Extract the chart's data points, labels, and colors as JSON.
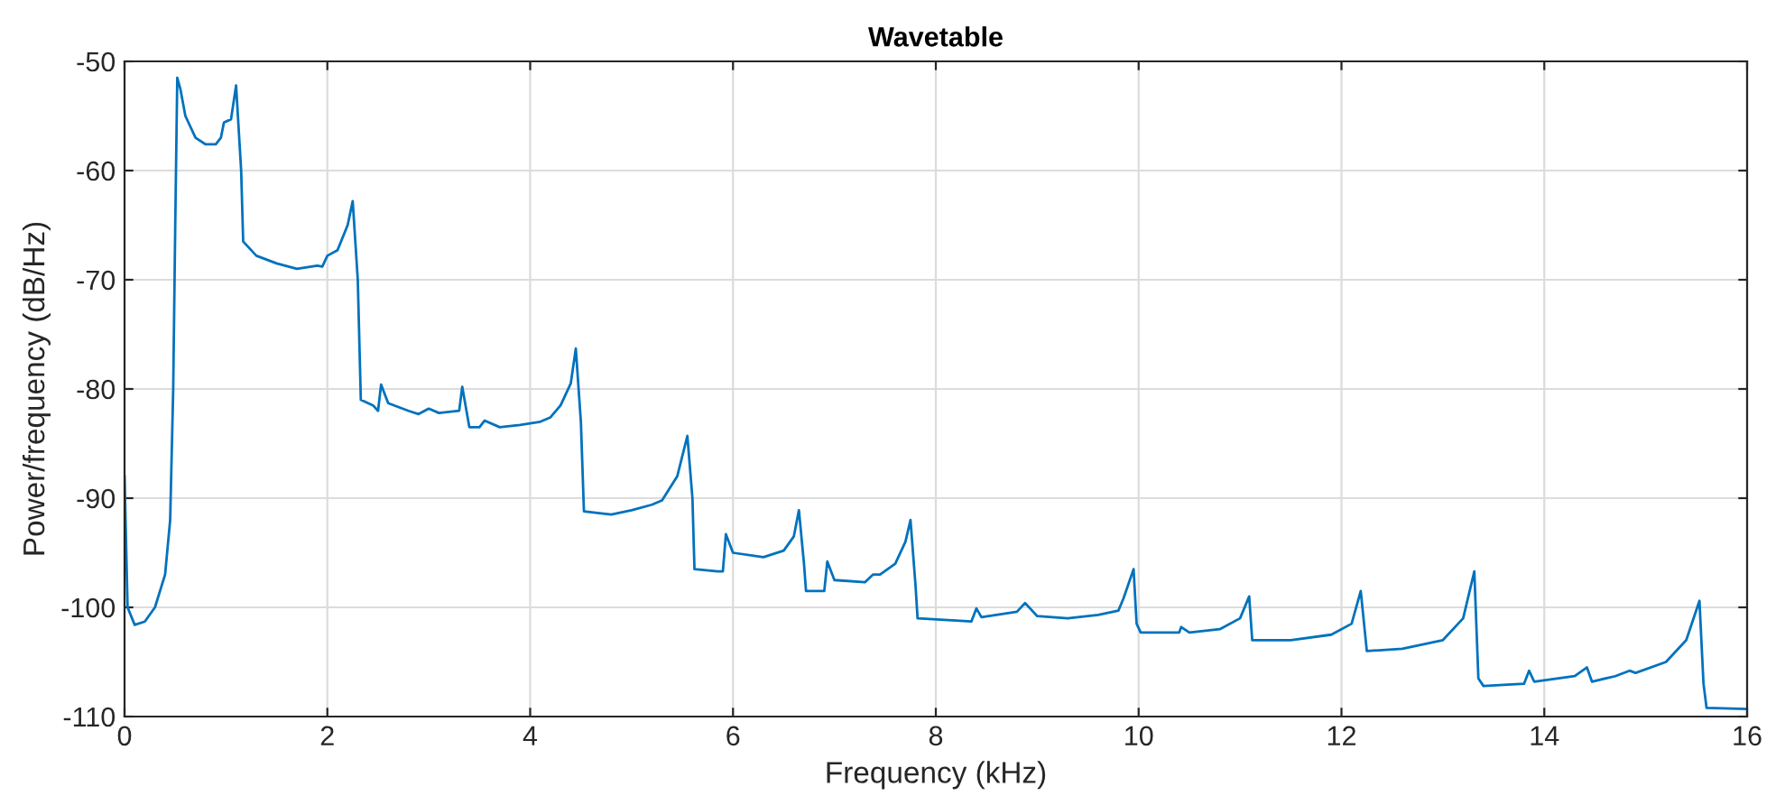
{
  "chart_data": {
    "type": "line",
    "title": "Wavetable",
    "xlabel": "Frequency (kHz)",
    "ylabel": "Power/frequency (dB/Hz)",
    "xlim": [
      0,
      16
    ],
    "ylim": [
      -110,
      -50
    ],
    "xticks": [
      0,
      2,
      4,
      6,
      8,
      10,
      12,
      14,
      16
    ],
    "yticks": [
      -110,
      -100,
      -90,
      -80,
      -70,
      -60,
      -50
    ],
    "grid": true,
    "series": [
      {
        "color": "#0072bd",
        "x": [
          0,
          0.03,
          0.1,
          0.2,
          0.3,
          0.4,
          0.45,
          0.48,
          0.5,
          0.52,
          0.55,
          0.6,
          0.7,
          0.8,
          0.9,
          0.95,
          0.98,
          1.05,
          1.1,
          1.15,
          1.17,
          1.3,
          1.5,
          1.7,
          1.9,
          1.95,
          2.0,
          2.1,
          2.2,
          2.25,
          2.3,
          2.33,
          2.45,
          2.5,
          2.53,
          2.6,
          2.8,
          2.9,
          3.0,
          3.1,
          3.3,
          3.33,
          3.4,
          3.5,
          3.55,
          3.7,
          3.9,
          4.1,
          4.2,
          4.3,
          4.4,
          4.45,
          4.5,
          4.53,
          4.7,
          4.8,
          5.0,
          5.2,
          5.3,
          5.45,
          5.55,
          5.6,
          5.62,
          5.85,
          5.9,
          5.93,
          6.0,
          6.3,
          6.5,
          6.6,
          6.65,
          6.7,
          6.72,
          6.9,
          6.93,
          7.0,
          7.3,
          7.38,
          7.45,
          7.6,
          7.7,
          7.75,
          7.8,
          7.82,
          8.2,
          8.35,
          8.4,
          8.45,
          8.8,
          8.88,
          9.0,
          9.3,
          9.6,
          9.8,
          9.85,
          9.95,
          9.98,
          10.02,
          10.4,
          10.42,
          10.5,
          10.8,
          11.0,
          11.09,
          11.12,
          11.5,
          11.9,
          12.1,
          12.19,
          12.25,
          12.6,
          13.0,
          13.2,
          13.31,
          13.35,
          13.4,
          13.8,
          13.85,
          13.9,
          14.3,
          14.42,
          14.47,
          14.7,
          14.84,
          14.9,
          15.2,
          15.4,
          15.53,
          15.57,
          15.6,
          16
        ],
        "values": [
          -88,
          -100,
          -101.6,
          -101.3,
          -100,
          -97,
          -92,
          -80,
          -65,
          -51.5,
          -52.5,
          -55,
          -57,
          -57.6,
          -57.6,
          -57,
          -55.6,
          -55.3,
          -52.2,
          -60,
          -66.5,
          -67.8,
          -68.5,
          -69,
          -68.7,
          -68.8,
          -67.8,
          -67.3,
          -65,
          -62.8,
          -70,
          -81,
          -81.5,
          -82,
          -79.6,
          -81.3,
          -82,
          -82.3,
          -81.8,
          -82.2,
          -82,
          -79.8,
          -83.5,
          -83.5,
          -82.9,
          -83.5,
          -83.3,
          -83,
          -82.6,
          -81.5,
          -79.5,
          -76.3,
          -83,
          -91.2,
          -91.4,
          -91.5,
          -91.1,
          -90.6,
          -90.2,
          -88,
          -84.3,
          -90,
          -96.5,
          -96.7,
          -96.7,
          -93.3,
          -95,
          -95.4,
          -94.8,
          -93.5,
          -91.1,
          -96,
          -98.5,
          -98.5,
          -95.8,
          -97.5,
          -97.7,
          -97,
          -97,
          -96,
          -94,
          -92,
          -98,
          -101,
          -101.2,
          -101.3,
          -100.1,
          -100.9,
          -100.4,
          -99.6,
          -100.8,
          -101,
          -100.7,
          -100.3,
          -99.2,
          -96.5,
          -101.5,
          -102.3,
          -102.3,
          -101.8,
          -102.3,
          -102,
          -101,
          -99,
          -103,
          -103,
          -102.5,
          -101.5,
          -98.5,
          -104,
          -103.8,
          -103,
          -101,
          -96.7,
          -106.5,
          -107.2,
          -107,
          -105.8,
          -106.8,
          -106.3,
          -105.5,
          -106.8,
          -106.3,
          -105.8,
          -106,
          -105,
          -103,
          -99.4,
          -107,
          -109.2,
          -109.3
        ]
      }
    ]
  }
}
